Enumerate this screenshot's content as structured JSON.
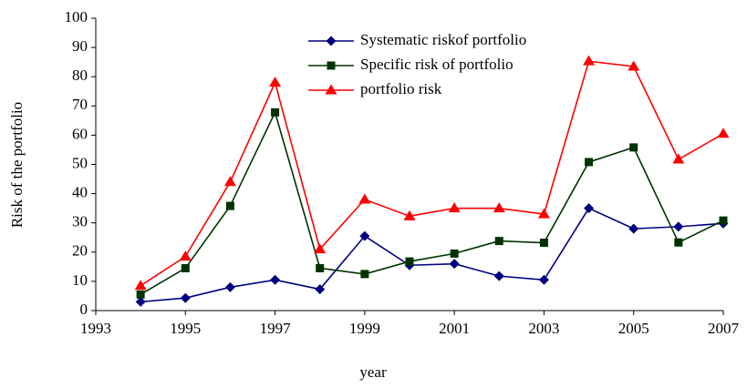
{
  "chart_data": {
    "type": "line",
    "x_label": "year",
    "y_label": "Risk of the portfolio",
    "x": [
      1994,
      1995,
      1996,
      1997,
      1998,
      1999,
      2000,
      2001,
      2002,
      2003,
      2004,
      2005,
      2006,
      2007
    ],
    "series": [
      {
        "name": "Systematic riskof portfolio",
        "color": "#000080",
        "marker": "diamond",
        "values": [
          3,
          4.3,
          8,
          10.5,
          7.3,
          25.5,
          15.5,
          16,
          11.8,
          10.5,
          35,
          28,
          28.7,
          29.8
        ]
      },
      {
        "name": "Specific risk of portfolio",
        "color": "#003300",
        "marker": "square",
        "values": [
          5.5,
          14.5,
          35.8,
          67.8,
          14.5,
          12.5,
          16.8,
          19.5,
          23.8,
          23.2,
          50.8,
          55.8,
          23.3,
          30.8
        ]
      },
      {
        "name": "portfolio risk",
        "color": "#ff0000",
        "marker": "triangle",
        "values": [
          8.5,
          18.5,
          44,
          78,
          21,
          38,
          32.3,
          35,
          35,
          33,
          85.3,
          83.5,
          51.7,
          60.5
        ]
      }
    ],
    "xlim": [
      1993,
      2007
    ],
    "xticks": [
      1993,
      1995,
      1997,
      1999,
      2001,
      2003,
      2005,
      2007
    ],
    "ylim": [
      0,
      100
    ],
    "yticks": [
      0,
      10,
      20,
      30,
      40,
      50,
      60,
      70,
      80,
      90,
      100
    ],
    "grid": false,
    "legend": "top"
  }
}
